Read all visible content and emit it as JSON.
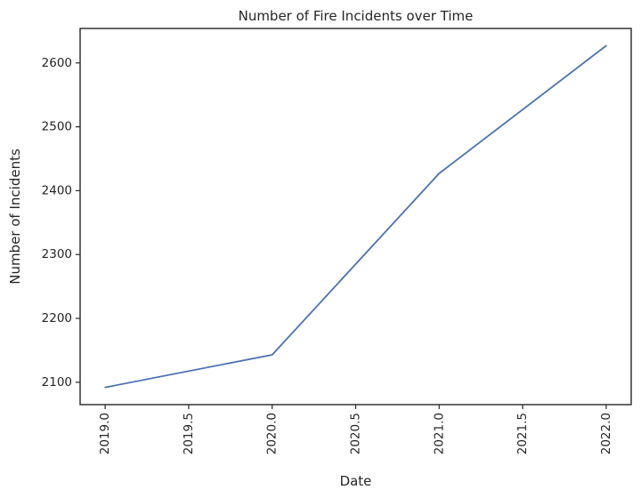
{
  "chart_data": {
    "type": "line",
    "title": "Number of Fire Incidents over Time",
    "xlabel": "Date",
    "ylabel": "Number of Incidents",
    "x": [
      2019,
      2020,
      2021,
      2022
    ],
    "series": [
      {
        "values": [
          2092,
          2143,
          2427,
          2627
        ],
        "color": "#4c72b0"
      }
    ],
    "xlim": [
      2018.85,
      2022.15
    ],
    "ylim": [
      2065,
      2654
    ],
    "xticks": [
      2019.0,
      2019.5,
      2020.0,
      2020.5,
      2021.0,
      2021.5,
      2022.0
    ],
    "xtick_labels": [
      "2019.0",
      "2019.5",
      "2020.0",
      "2020.5",
      "2021.0",
      "2021.5",
      "2022.0"
    ],
    "yticks": [
      2100,
      2200,
      2300,
      2400,
      2500,
      2600
    ],
    "ytick_labels": [
      "2100",
      "2200",
      "2300",
      "2400",
      "2500",
      "2600"
    ],
    "grid": false,
    "legend": "none"
  }
}
